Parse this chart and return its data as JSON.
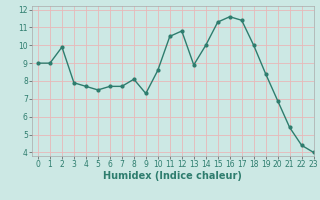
{
  "x": [
    0,
    1,
    2,
    3,
    4,
    5,
    6,
    7,
    8,
    9,
    10,
    11,
    12,
    13,
    14,
    15,
    16,
    17,
    18,
    19,
    20,
    21,
    22,
    23
  ],
  "y": [
    9.0,
    9.0,
    9.9,
    7.9,
    7.7,
    7.5,
    7.7,
    7.7,
    8.1,
    7.3,
    8.6,
    10.5,
    10.8,
    8.9,
    10.0,
    11.3,
    11.6,
    11.4,
    10.0,
    8.4,
    6.9,
    5.4,
    4.4,
    4.0
  ],
  "line_color": "#2e7d6e",
  "marker": "o",
  "markersize": 2.0,
  "linewidth": 1.0,
  "xlabel": "Humidex (Indice chaleur)",
  "xlim": [
    -0.5,
    23
  ],
  "ylim": [
    3.8,
    12.2
  ],
  "xticks": [
    0,
    1,
    2,
    3,
    4,
    5,
    6,
    7,
    8,
    9,
    10,
    11,
    12,
    13,
    14,
    15,
    16,
    17,
    18,
    19,
    20,
    21,
    22,
    23
  ],
  "yticks": [
    4,
    5,
    6,
    7,
    8,
    9,
    10,
    11,
    12
  ],
  "bg_color": "#cce8e4",
  "grid_color": "#e8b8b8",
  "tick_fontsize": 5.5,
  "xlabel_fontsize": 7.0
}
